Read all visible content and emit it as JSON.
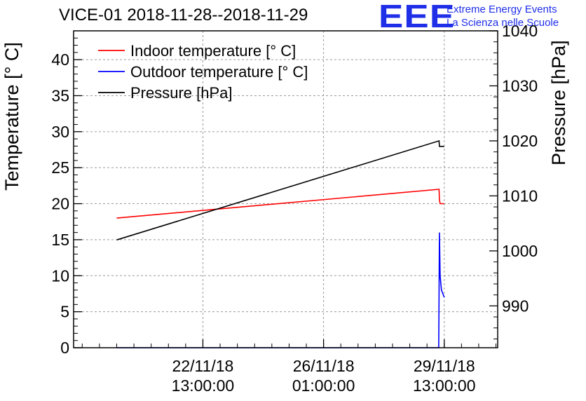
{
  "chart_data": {
    "type": "line",
    "title": "VICE-01 2018-11-28--2018-11-29",
    "logo": {
      "mark": "EEE",
      "line1": "Extreme Energy Events",
      "line2": "La Scienza nelle Scuole"
    },
    "ylabel": "Temperature [° C]",
    "y2label": "Pressure [hPa]",
    "xticks": [
      {
        "line1": "22/11/18",
        "line2": "13:00:00",
        "day": 2.5
      },
      {
        "line1": "26/11/18",
        "line2": "01:00:00",
        "day": 6.0
      },
      {
        "line1": "29/11/18",
        "line2": "13:00:00",
        "day": 9.5
      }
    ],
    "xlim": [
      -1.25,
      11.05
    ],
    "ylim": [
      0,
      44
    ],
    "y2lim": [
      982.4,
      1040
    ],
    "yticks": [
      0,
      5,
      10,
      15,
      20,
      25,
      30,
      35,
      40
    ],
    "y2ticks": [
      990,
      1000,
      1010,
      1020,
      1030,
      1040
    ],
    "grid": true,
    "legend_position": "top-left",
    "series": [
      {
        "name": "Indoor temperature [° C]",
        "color": "#ff0000",
        "axis": "left",
        "points": [
          [
            0.0,
            18.0
          ],
          [
            9.35,
            22.0
          ],
          [
            9.36,
            20.5
          ],
          [
            9.38,
            20.0
          ],
          [
            9.5,
            20.0
          ]
        ]
      },
      {
        "name": "Outdoor temperature [° C]",
        "color": "#0000ff",
        "axis": "left",
        "points": [
          [
            0.0,
            0.0
          ],
          [
            9.34,
            0.0
          ],
          [
            9.36,
            16.0
          ],
          [
            9.38,
            10.0
          ],
          [
            9.42,
            8.0
          ],
          [
            9.5,
            7.0
          ]
        ]
      },
      {
        "name": "Pressure [hPa]",
        "color": "#000000",
        "axis": "right",
        "points": [
          [
            0.0,
            1002.0
          ],
          [
            9.35,
            1020.0
          ],
          [
            9.36,
            1019.0
          ],
          [
            9.5,
            1019.0
          ]
        ]
      }
    ]
  }
}
